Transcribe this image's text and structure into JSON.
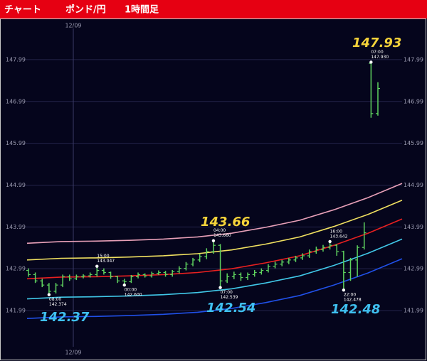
{
  "header": {
    "title": "チャート",
    "pair": "ポンド/円",
    "timeframe": "1時間足"
  },
  "chart_data": {
    "type": "ohlc",
    "date_label": "12/09",
    "ylim": [
      141.09,
      148.94
    ],
    "yticks": [
      141.99,
      142.99,
      143.99,
      144.99,
      145.99,
      146.99,
      147.99
    ],
    "grid": true,
    "color": "#5fd35f",
    "open": [
      142.95,
      142.85,
      142.7,
      142.6,
      142.45,
      142.6,
      142.8,
      142.75,
      142.8,
      142.82,
      142.85,
      142.95,
      142.9,
      142.8,
      142.7,
      142.68,
      142.8,
      142.85,
      142.82,
      142.88,
      142.9,
      142.85,
      142.92,
      143.0,
      143.1,
      143.2,
      143.28,
      143.4,
      143.55,
      142.7,
      142.8,
      142.85,
      142.78,
      142.85,
      142.9,
      142.95,
      143.05,
      143.1,
      143.15,
      143.2,
      143.25,
      143.3,
      143.4,
      143.45,
      143.5,
      143.55,
      143.4,
      142.9,
      143.2,
      143.5,
      147.9,
      146.7
    ],
    "high": [
      143.0,
      142.9,
      142.75,
      142.65,
      142.65,
      142.85,
      142.85,
      142.85,
      142.86,
      142.9,
      143.05,
      143.0,
      142.92,
      142.82,
      142.75,
      142.84,
      142.9,
      142.88,
      142.92,
      142.95,
      142.94,
      142.96,
      143.05,
      143.15,
      143.25,
      143.35,
      143.48,
      143.66,
      143.58,
      142.88,
      142.92,
      142.9,
      142.9,
      142.96,
      143.0,
      143.1,
      143.16,
      143.2,
      143.25,
      143.3,
      143.36,
      143.45,
      143.52,
      143.56,
      143.64,
      143.58,
      143.42,
      143.25,
      143.55,
      144.1,
      147.93,
      147.45
    ],
    "low": [
      142.8,
      142.65,
      142.55,
      142.37,
      142.4,
      142.55,
      142.7,
      142.72,
      142.76,
      142.78,
      142.8,
      142.85,
      142.75,
      142.65,
      142.6,
      142.65,
      142.76,
      142.78,
      142.78,
      142.84,
      142.8,
      142.8,
      142.88,
      142.95,
      143.05,
      143.15,
      143.22,
      143.35,
      142.54,
      142.65,
      142.74,
      142.7,
      142.72,
      142.8,
      142.85,
      142.9,
      143.0,
      143.05,
      143.1,
      143.15,
      143.2,
      143.25,
      143.35,
      143.4,
      143.45,
      143.3,
      142.48,
      142.7,
      142.8,
      143.45,
      146.6,
      146.65
    ],
    "close": [
      142.85,
      142.7,
      142.6,
      142.45,
      142.6,
      142.8,
      142.75,
      142.8,
      142.82,
      142.85,
      142.95,
      142.9,
      142.8,
      142.7,
      142.68,
      142.8,
      142.85,
      142.82,
      142.88,
      142.9,
      142.85,
      142.92,
      143.0,
      143.1,
      143.2,
      143.28,
      143.4,
      143.55,
      142.7,
      142.8,
      142.85,
      142.78,
      142.85,
      142.9,
      142.95,
      143.05,
      143.1,
      143.15,
      143.2,
      143.25,
      143.3,
      143.4,
      143.45,
      143.5,
      143.55,
      143.4,
      142.9,
      143.2,
      143.5,
      143.85,
      146.7,
      147.3
    ],
    "bands": [
      {
        "color": "#e8a0b8",
        "values": [
          143.6,
          143.64,
          143.65,
          143.67,
          143.7,
          143.75,
          143.84,
          143.98,
          144.15,
          144.4,
          144.69,
          145.03
        ]
      },
      {
        "color": "#f0e060",
        "values": [
          143.2,
          143.24,
          143.25,
          143.27,
          143.3,
          143.35,
          143.44,
          143.58,
          143.75,
          144.0,
          144.29,
          144.63
        ]
      },
      {
        "color": "#e82020",
        "values": [
          142.75,
          142.79,
          142.8,
          142.82,
          142.85,
          142.9,
          142.99,
          143.13,
          143.3,
          143.55,
          143.84,
          144.18
        ]
      },
      {
        "color": "#40c8e8",
        "values": [
          142.27,
          142.31,
          142.32,
          142.34,
          142.37,
          142.42,
          142.51,
          142.65,
          142.82,
          143.07,
          143.36,
          143.7
        ]
      },
      {
        "color": "#2050e8",
        "values": [
          141.8,
          141.84,
          141.85,
          141.87,
          141.9,
          141.95,
          142.04,
          142.18,
          142.35,
          142.6,
          142.89,
          143.23
        ]
      }
    ],
    "big_labels": [
      {
        "text": "147.93",
        "color": "#f5d33a"
      },
      {
        "text": "143.66",
        "color": "#f5d33a"
      },
      {
        "text": "142.37",
        "color": "#3fc0f0"
      },
      {
        "text": "142.54",
        "color": "#3fc0f0"
      },
      {
        "text": "142.48",
        "color": "#3fc0f0"
      }
    ],
    "annotations": [
      {
        "time": "07:00",
        "price": "147.930"
      },
      {
        "time": "15:00",
        "price": "143.047"
      },
      {
        "time": "00:00",
        "price": "142.600"
      },
      {
        "time": "04:00",
        "price": "143.660"
      },
      {
        "time": "07:00",
        "price": "142.539"
      },
      {
        "time": "16:00",
        "price": "143.642"
      },
      {
        "time": "22:00",
        "price": "142.478"
      },
      {
        "time": "08:00",
        "price": "142.374"
      }
    ]
  }
}
